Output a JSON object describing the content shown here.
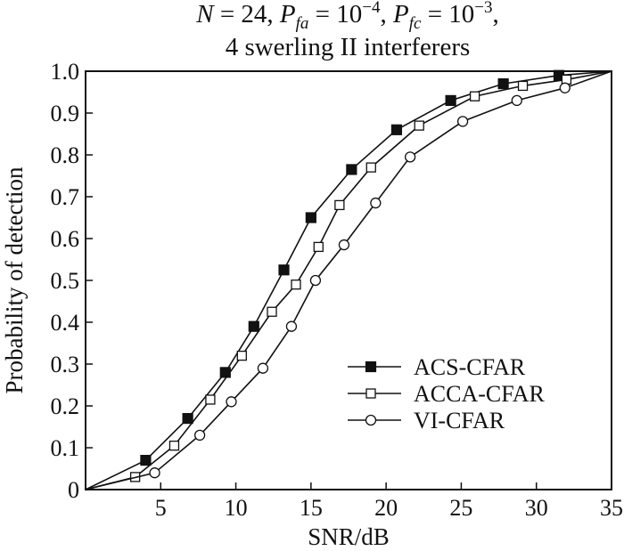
{
  "chart_data": {
    "type": "line",
    "title_parts": {
      "n_label": "N",
      "n_value": " = 24, ",
      "pfa_label": "P",
      "pfa_sub": "fa",
      "pfa_eq": " = 10",
      "pfa_exp": "−4",
      "sep": ", ",
      "pfc_label": "P",
      "pfc_sub": "fc",
      "pfc_eq": " = 10",
      "pfc_exp": "−3",
      "end": ","
    },
    "subtitle": "4 swerling II interferers",
    "xlabel": "SNR/dB",
    "ylabel": "Probability of detection",
    "xlim": [
      0,
      35
    ],
    "ylim": [
      0,
      1.0
    ],
    "xticks": [
      5,
      10,
      15,
      20,
      25,
      30,
      35
    ],
    "yticks": [
      0,
      0.1,
      0.2,
      0.3,
      0.4,
      0.5,
      0.6,
      0.7,
      0.8,
      0.9,
      1.0
    ],
    "ytick_labels": [
      "0",
      "0.1",
      "0.2",
      "0.3",
      "0.4",
      "0.5",
      "0.6",
      "0.7",
      "0.8",
      "0.9",
      "1.0"
    ],
    "grid": false,
    "legend_position": "bottom-right",
    "series": [
      {
        "name": "ACS-CFAR",
        "marker": "filled-square",
        "x": [
          0,
          4,
          6.8,
          9.3,
          11.2,
          13.2,
          15,
          17.7,
          20.7,
          24.3,
          27.8,
          31.5,
          35
        ],
        "y": [
          0,
          0.07,
          0.17,
          0.28,
          0.39,
          0.525,
          0.65,
          0.765,
          0.86,
          0.93,
          0.97,
          0.99,
          1.0
        ]
      },
      {
        "name": "ACCA-CFAR",
        "marker": "open-square",
        "x": [
          0,
          3.3,
          5.9,
          8.3,
          10.4,
          12.4,
          14,
          15.5,
          16.9,
          19,
          22.2,
          25.9,
          29.1,
          32,
          35
        ],
        "y": [
          0,
          0.03,
          0.105,
          0.215,
          0.32,
          0.425,
          0.49,
          0.58,
          0.68,
          0.77,
          0.87,
          0.94,
          0.965,
          0.98,
          1.0
        ]
      },
      {
        "name": "VI-CFAR",
        "marker": "open-circle",
        "x": [
          0,
          4.6,
          7.6,
          9.7,
          11.8,
          13.7,
          15.3,
          17.2,
          19.3,
          21.6,
          25.1,
          28.7,
          31.9,
          35
        ],
        "y": [
          0,
          0.04,
          0.13,
          0.21,
          0.29,
          0.39,
          0.5,
          0.585,
          0.685,
          0.795,
          0.88,
          0.93,
          0.96,
          1.0
        ]
      }
    ]
  }
}
